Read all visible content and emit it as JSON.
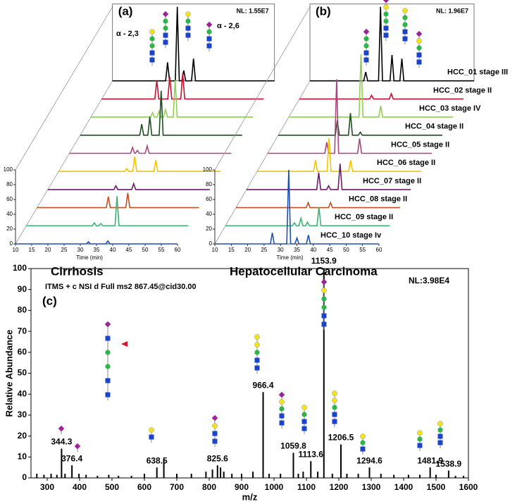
{
  "chart_data": [
    {
      "type": "waterfall",
      "label": "(a)",
      "title": "Cirrhosis",
      "annotations": [
        "α - 2,3",
        "α - 2,6"
      ],
      "nl": "NL: 1.55E7",
      "xlabel": "Time (min)",
      "xlim": [
        10,
        60
      ],
      "xticks": [
        10,
        15,
        20,
        25,
        30,
        35,
        40,
        45,
        50,
        55,
        60
      ],
      "ylim": [
        0,
        100
      ],
      "yticks": [
        0,
        20,
        40,
        60,
        80,
        100
      ],
      "series": [
        {
          "color": "#000000",
          "x": [
            10,
            26.4,
            27,
            27.6,
            29.4,
            30,
            30.6,
            31.4,
            32,
            32.6,
            34.4,
            35,
            35.6,
            60
          ],
          "values": [
            0,
            0,
            25,
            0,
            0,
            100,
            0,
            0,
            14,
            0,
            0,
            30,
            0,
            0
          ]
        },
        {
          "color": "#c8102e",
          "x": [
            10,
            26.4,
            27,
            27.6,
            30.4,
            31,
            31.6,
            34.4,
            35,
            35.6,
            60
          ],
          "values": [
            0,
            0,
            25,
            0,
            0,
            30,
            0,
            0,
            35,
            0,
            0
          ]
        },
        {
          "color": "#8fd14f",
          "x": [
            10,
            28.4,
            29,
            29.6,
            30.4,
            31,
            31.6,
            32.4,
            33,
            33.6,
            35.4,
            36,
            36.6,
            60
          ],
          "values": [
            0,
            0,
            6,
            0,
            0,
            8,
            0,
            0,
            10,
            0,
            0,
            50,
            0,
            0
          ]
        },
        {
          "color": "#1e4d1e",
          "x": [
            10,
            28.4,
            29,
            29.6,
            30.9,
            31.5,
            32.1,
            34.4,
            35,
            35.6,
            60
          ],
          "values": [
            0,
            0,
            15,
            0,
            0,
            25,
            0,
            0,
            60,
            0,
            0
          ]
        },
        {
          "color": "#a8457a",
          "x": [
            10,
            28.9,
            29.5,
            30.1,
            30.4,
            31,
            31.6,
            33.4,
            34,
            34.6,
            60
          ],
          "values": [
            0,
            0,
            8,
            0,
            0,
            4,
            0,
            0,
            10,
            0,
            0
          ]
        },
        {
          "color": "#f5c400",
          "x": [
            10,
            30.4,
            31,
            31.6,
            32.9,
            33.5,
            34.1,
            39.4,
            40,
            40.6,
            60
          ],
          "values": [
            0,
            0,
            4,
            0,
            0,
            20,
            0,
            0,
            15,
            0,
            0
          ]
        },
        {
          "color": "#6b1a6b",
          "x": [
            10,
            30.4,
            31,
            31.6,
            35.9,
            36.5,
            37.1,
            60
          ],
          "values": [
            0,
            0,
            5,
            0,
            0,
            8,
            0,
            0
          ]
        },
        {
          "color": "#c0501e",
          "x": [
            10,
            31.4,
            32,
            32.6,
            37.4,
            38,
            38.6,
            60
          ],
          "values": [
            0,
            0,
            15,
            0,
            0,
            20,
            0,
            0
          ]
        },
        {
          "color": "#3cb371",
          "x": [
            10,
            30.4,
            31,
            31.6,
            32.4,
            33,
            33.6,
            37.4,
            38,
            38.6,
            60
          ],
          "values": [
            0,
            0,
            4,
            0,
            0,
            3,
            0,
            0,
            40,
            0,
            0
          ]
        },
        {
          "color": "#1f4fb5",
          "x": [
            10,
            31.9,
            32.5,
            33.1,
            37.9,
            38.5,
            39.1,
            60
          ],
          "values": [
            0,
            0,
            3,
            0,
            0,
            4,
            0,
            0
          ]
        }
      ]
    },
    {
      "type": "waterfall",
      "label": "(b)",
      "title": "Hepatocellular Carcinoma",
      "nl": "NL: 1.96E7",
      "xlabel": "Time (min)",
      "xlim": [
        10,
        60
      ],
      "xticks": [
        10,
        15,
        20,
        25,
        30,
        35,
        40,
        45,
        50,
        55,
        60
      ],
      "ylim": [
        0,
        100
      ],
      "yticks": [
        0,
        20,
        40,
        60,
        80,
        100
      ],
      "series": [
        {
          "name": "HCC_01 stage III",
          "color": "#000000",
          "x": [
            10,
            26.4,
            27,
            27.6,
            30.9,
            31.5,
            32.1,
            34.4,
            35,
            35.6,
            37.4,
            38,
            38.6,
            60
          ],
          "values": [
            0,
            0,
            12,
            0,
            0,
            100,
            0,
            0,
            35,
            0,
            0,
            30,
            0,
            0
          ]
        },
        {
          "name": "HCC_02 stage II",
          "color": "#c8102e",
          "x": [
            10,
            31.4,
            32,
            32.6,
            37.4,
            38,
            38.6,
            60
          ],
          "values": [
            0,
            0,
            5,
            0,
            0,
            7,
            0,
            0
          ]
        },
        {
          "name": "HCC_03 stage IV",
          "color": "#8fd14f",
          "x": [
            10,
            31.4,
            32,
            32.6,
            37.4,
            38,
            38.6,
            60
          ],
          "values": [
            0,
            0,
            85,
            0,
            0,
            15,
            0,
            0
          ]
        },
        {
          "name": "HCC_04 stage II",
          "color": "#1e4d1e",
          "x": [
            10,
            27.4,
            28,
            28.6,
            31.4,
            32,
            32.6,
            34.4,
            35,
            35.6,
            60
          ],
          "values": [
            0,
            0,
            20,
            0,
            0,
            30,
            0,
            0,
            4,
            0,
            0
          ]
        },
        {
          "name": "HCC_05 stage II",
          "color": "#a8457a",
          "x": [
            10,
            27.4,
            28,
            28.6,
            30.4,
            31,
            31.6,
            37.4,
            38,
            38.6,
            60
          ],
          "values": [
            0,
            0,
            15,
            0,
            0,
            100,
            0,
            0,
            20,
            0,
            0
          ]
        },
        {
          "name": "HCC_06 stage II",
          "color": "#f5c400",
          "x": [
            10,
            27.2,
            27.8,
            28.4,
            31.3,
            31.9,
            32.5,
            37.9,
            38.5,
            39.1,
            60
          ],
          "values": [
            0,
            0,
            15,
            0,
            0,
            45,
            0,
            0,
            15,
            0,
            0
          ]
        },
        {
          "name": "HCC_07 stage II",
          "color": "#6b1a6b",
          "x": [
            10,
            31.4,
            32,
            32.6,
            34.4,
            35,
            35.6,
            37.9,
            38.5,
            39.1,
            60
          ],
          "values": [
            0,
            0,
            23,
            0,
            0,
            5,
            0,
            0,
            35,
            0,
            0
          ]
        },
        {
          "name": "HCC_08 stage II",
          "color": "#c0501e",
          "x": [
            10,
            31.4,
            32,
            32.6,
            38.2,
            38.8,
            39.4,
            60
          ],
          "values": [
            0,
            0,
            7,
            0,
            0,
            7,
            0,
            0
          ]
        },
        {
          "name": "HCC_09 stage II",
          "color": "#3cb371",
          "x": [
            10,
            30.4,
            31,
            31.6,
            32.4,
            33,
            33.6,
            34.4,
            35,
            35.6,
            37.9,
            38.5,
            39.1,
            60
          ],
          "values": [
            0,
            0,
            4,
            0,
            0,
            10,
            0,
            0,
            5,
            0,
            0,
            25,
            0,
            0
          ]
        },
        {
          "name": "HCC_10 stage Iv",
          "color": "#1f4fb5",
          "x": [
            10,
            26.9,
            27.5,
            28.1,
            31.9,
            32.5,
            33.1,
            34.4,
            35,
            35.6,
            37.9,
            38.5,
            39.1,
            60
          ],
          "values": [
            0,
            0,
            15,
            0,
            0,
            100,
            0,
            0,
            8,
            0,
            0,
            12,
            0,
            0
          ]
        }
      ]
    },
    {
      "type": "spectrum",
      "label": "(c)",
      "title": "ITMS + c NSI d Full ms2 867.45@cid30.00",
      "nl": "NL:3.98E4",
      "xlabel": "m/z",
      "ylabel": "Relative Abundance",
      "xlim": [
        250,
        1600
      ],
      "xticks": [
        300,
        400,
        500,
        600,
        700,
        800,
        900,
        1000,
        1100,
        1200,
        1300,
        1400,
        1500,
        1600
      ],
      "ylim": [
        0,
        100
      ],
      "yticks": [
        0,
        10,
        20,
        30,
        40,
        50,
        60,
        70,
        80,
        90,
        100
      ],
      "series": [
        {
          "color": "#000000",
          "label_peaks": true,
          "x": [
            344.3,
            376.4,
            638.5,
            825.6,
            966.4,
            1059.8,
            1113.6,
            1153.9,
            1206.5,
            1294.6,
            1481.9,
            1538.9
          ],
          "values": [
            14,
            6,
            5,
            6,
            41,
            12,
            8,
            100,
            16,
            5,
            5,
            3.5
          ]
        },
        {
          "color": "#000000",
          "x": [
            268,
            290,
            312,
            330,
            355,
            398,
            420,
            455,
            490,
            520,
            560,
            600,
            660,
            700,
            745,
            790,
            810,
            835,
            845,
            870,
            900,
            935,
            985,
            1020,
            1075,
            1090,
            1135,
            1180,
            1225,
            1260,
            1330,
            1370,
            1415,
            1450,
            1500,
            1560,
            1585
          ],
          "values": [
            2,
            1.5,
            2,
            1.5,
            2,
            2,
            1.5,
            1,
            1.5,
            1,
            1,
            2,
            9,
            2,
            2,
            3,
            4,
            5,
            3,
            2,
            2,
            3,
            2,
            2,
            2,
            3,
            3,
            2,
            2,
            2,
            2,
            1.5,
            1.5,
            1.5,
            1.5,
            1,
            1
          ]
        }
      ]
    }
  ]
}
